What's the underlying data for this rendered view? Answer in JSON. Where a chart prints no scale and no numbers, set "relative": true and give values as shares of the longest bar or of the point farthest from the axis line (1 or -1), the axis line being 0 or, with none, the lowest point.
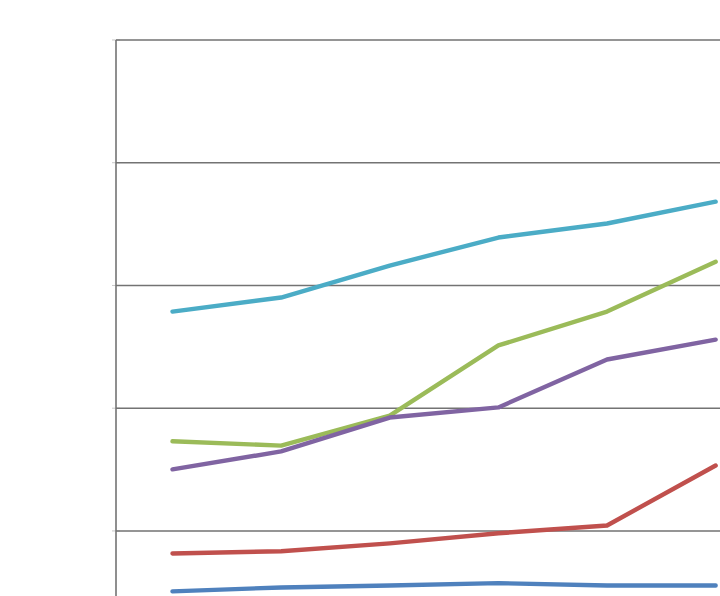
{
  "chart_data": {
    "type": "line",
    "relative": true,
    "grid": "y",
    "marker": "none",
    "line_style": "solid",
    "categories": [
      null,
      null,
      null,
      null,
      null,
      null
    ],
    "series": [
      {
        "color": "#4f81bd",
        "values": [
          0,
          0.01,
          0.015,
          0.021,
          0.015,
          0.015
        ]
      },
      {
        "color": "#c0504d",
        "values": [
          0.097,
          0.103,
          0.123,
          0.149,
          0.169,
          0.323
        ]
      },
      {
        "color": "#9bbb59",
        "values": [
          0.385,
          0.374,
          0.451,
          0.631,
          0.718,
          0.846
        ]
      },
      {
        "color": "#8064a2",
        "values": [
          0.313,
          0.359,
          0.446,
          0.472,
          0.595,
          0.646
        ]
      },
      {
        "color": "#4bacc6",
        "values": [
          0.718,
          0.754,
          0.836,
          0.908,
          0.944,
          1
        ]
      }
    ]
  }
}
